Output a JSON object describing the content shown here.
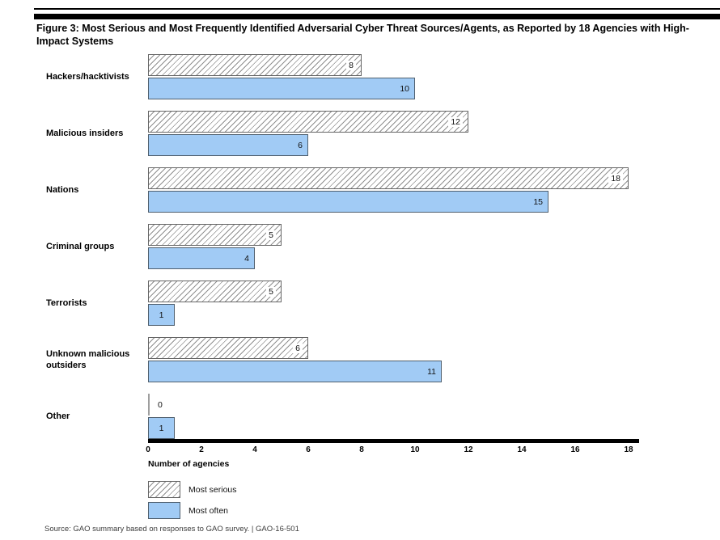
{
  "figure": {
    "title": "Figure 3: Most Serious and Most Frequently Identified Adversarial Cyber Threat Sources/Agents, as Reported by 18 Agencies with High-Impact Systems",
    "source_note": "Source: GAO summary based on responses to GAO survey.  |  GAO-16-501"
  },
  "chart_data": {
    "type": "bar",
    "orientation": "horizontal",
    "title": "Figure 3: Most Serious and Most Frequently Identified Adversarial Cyber Threat Sources/Agents, as Reported by 18 Agencies with High-Impact Systems",
    "categories": [
      "Hackers/hacktivists",
      "Malicious insiders",
      "Nations",
      "Criminal groups",
      "Terrorists",
      "Unknown malicious outsiders",
      "Other"
    ],
    "series": [
      {
        "name": "Most serious",
        "style": "hatched",
        "values": [
          8,
          12,
          18,
          5,
          5,
          6,
          0
        ]
      },
      {
        "name": "Most often",
        "style": "solid",
        "color": "#a1cbf5",
        "values": [
          10,
          6,
          15,
          4,
          1,
          11,
          1
        ]
      }
    ],
    "xlabel": "Number of agencies",
    "ylabel": "",
    "xlim": [
      0,
      18
    ],
    "xticks": [
      0,
      2,
      4,
      6,
      8,
      10,
      12,
      14,
      16,
      18
    ],
    "grid": false,
    "value_labels": true,
    "legend_position": "bottom-left"
  },
  "colors": {
    "bar_fill_blue": "#a1cbf5",
    "bar_border": "#4f5f6e",
    "hatch_line": "#8f8f8f",
    "axis": "#000000",
    "zero_marker": "#9e9e9e"
  }
}
